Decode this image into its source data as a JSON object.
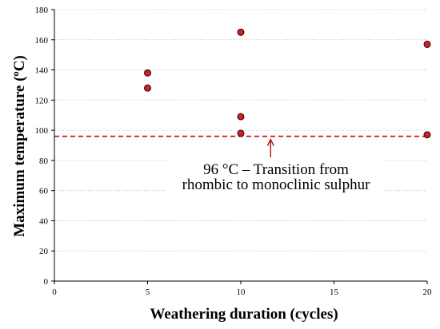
{
  "chart_data": {
    "type": "scatter",
    "xlabel": "Weathering duration (cycles)",
    "ylabel": "Maximum temperature  (ºC)",
    "xlim": [
      0,
      20
    ],
    "ylim": [
      0,
      180
    ],
    "xticks": [
      0,
      5,
      10,
      15,
      20
    ],
    "yticks": [
      0,
      20,
      40,
      60,
      80,
      100,
      120,
      140,
      160,
      180
    ],
    "grid": "horizontal dotted",
    "series": [
      {
        "points": [
          {
            "x": 5,
            "y": 138
          },
          {
            "x": 5,
            "y": 128
          },
          {
            "x": 10,
            "y": 165
          },
          {
            "x": 10,
            "y": 109
          },
          {
            "x": 10,
            "y": 98
          },
          {
            "x": 20,
            "y": 157
          },
          {
            "x": 20,
            "y": 97
          }
        ]
      }
    ],
    "reference_line": {
      "y": 96,
      "style": "dashed"
    },
    "annotation": {
      "lines": [
        "96 °C – Transition from",
        "rhombic to monoclinic sulphur"
      ],
      "arrow_x": 11.6
    },
    "colors": {
      "marker": "#e31a1c",
      "reference": "#cc0000",
      "arrow": "#b00000",
      "grid": "#bfbfbf"
    }
  }
}
